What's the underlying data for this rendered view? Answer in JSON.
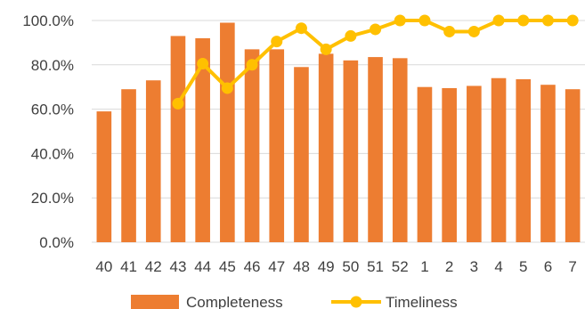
{
  "chart_data": {
    "type": "bar",
    "categories": [
      "40",
      "41",
      "42",
      "43",
      "44",
      "45",
      "46",
      "47",
      "48",
      "49",
      "50",
      "51",
      "52",
      "1",
      "2",
      "3",
      "4",
      "5",
      "6",
      "7"
    ],
    "series": [
      {
        "name": "Completeness",
        "type": "bar",
        "color": "#ED7D31",
        "values": [
          0.59,
          0.69,
          0.73,
          0.93,
          0.92,
          0.99,
          0.87,
          0.87,
          0.79,
          0.85,
          0.82,
          0.835,
          0.83,
          0.7,
          0.695,
          0.705,
          0.74,
          0.735,
          0.71,
          0.69
        ]
      },
      {
        "name": "Timeliness",
        "type": "line",
        "color": "#FFC000",
        "values": [
          null,
          null,
          null,
          0.625,
          0.805,
          0.695,
          0.8,
          0.905,
          0.965,
          0.87,
          0.93,
          0.96,
          1.0,
          1.0,
          0.95,
          0.95,
          1.0,
          1.0,
          1.0,
          1.0
        ]
      }
    ],
    "ylim": [
      0,
      1.0
    ],
    "yticks": [
      "0.0%",
      "20.0%",
      "40.0%",
      "60.0%",
      "80.0%",
      "100.0%"
    ],
    "grid": true,
    "legend": "bottom",
    "title": "",
    "xlabel": "",
    "ylabel": ""
  }
}
